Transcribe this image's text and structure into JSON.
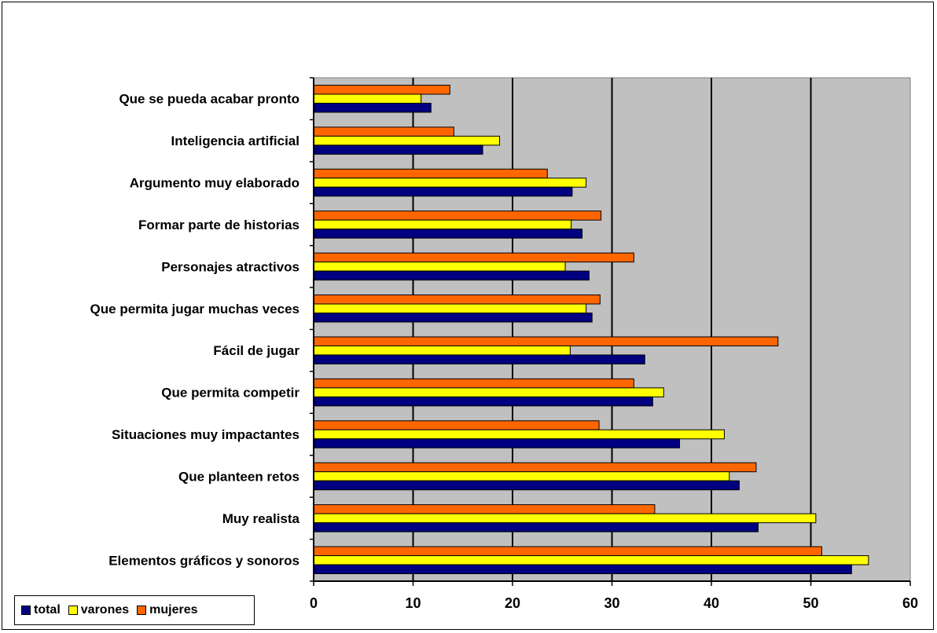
{
  "chart_data": {
    "type": "bar",
    "orientation": "horizontal",
    "categories": [
      "Que se pueda acabar pronto",
      "Inteligencia artificial",
      "Argumento muy elaborado",
      "Formar parte de historias",
      "Personajes atractivos",
      "Que permita jugar muchas veces",
      "Fácil de jugar",
      "Que permita competir",
      "Situaciones muy impactantes",
      "Que planteen retos",
      "Muy realista",
      "Elementos gráficos y sonoros"
    ],
    "series": [
      {
        "name": "mujeres",
        "color": "#ff6600",
        "values": [
          13.7,
          14.1,
          23.5,
          28.9,
          32.2,
          28.8,
          46.7,
          32.2,
          28.7,
          44.5,
          34.3,
          51.1
        ]
      },
      {
        "name": "varones",
        "color": "#ffff00",
        "values": [
          10.8,
          18.7,
          27.4,
          25.9,
          25.3,
          27.4,
          25.8,
          35.2,
          41.3,
          41.8,
          50.5,
          55.8
        ]
      },
      {
        "name": "total",
        "color": "#000080",
        "values": [
          11.8,
          17.0,
          26.0,
          27.0,
          27.7,
          28.0,
          33.3,
          34.1,
          36.8,
          42.8,
          44.7,
          54.1
        ]
      }
    ],
    "legend_order": [
      "total",
      "varones",
      "mujeres"
    ],
    "xlim": [
      0,
      60
    ],
    "x_ticks": [
      "0",
      "10",
      "20",
      "30",
      "40",
      "50",
      "60"
    ],
    "plot_background": "#c0c0c0",
    "grid": "vertical",
    "legend_position": "bottom-left",
    "title": "",
    "xlabel": "",
    "ylabel": ""
  }
}
